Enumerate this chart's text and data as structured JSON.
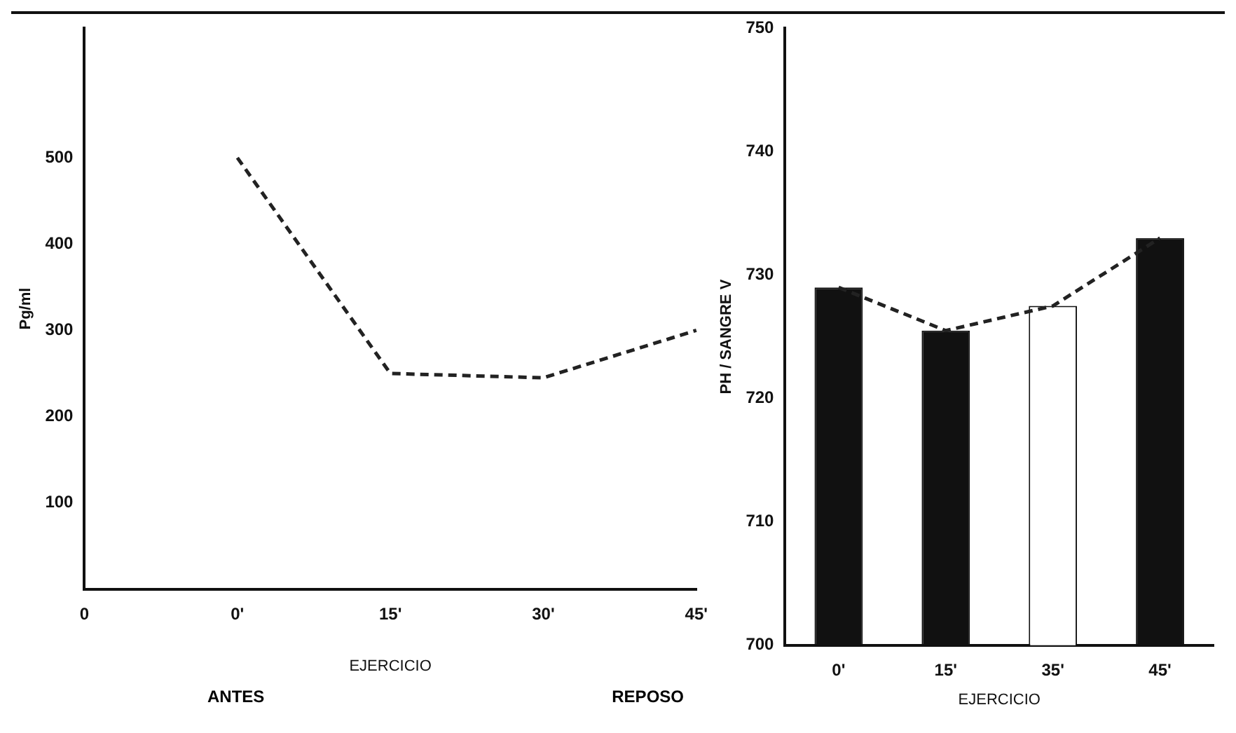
{
  "chart_data": [
    {
      "type": "line",
      "ylabel": "Pg/ml",
      "xlabel": "EJERCICIO",
      "categories": [
        "0",
        "0'",
        "15'",
        "30'",
        "45'"
      ],
      "series": [
        {
          "color": "#222222",
          "values": [
            null,
            500,
            250,
            245,
            300
          ],
          "line_style": "dashed",
          "marker": "none"
        }
      ],
      "ylim": [
        0,
        650
      ],
      "yticks": [
        100,
        200,
        300,
        400,
        500
      ],
      "grid": false,
      "legend": false,
      "annotations": [
        "ANTES",
        "REPOSO"
      ]
    },
    {
      "type": "bar",
      "ylabel": "PH / SANGRE V",
      "xlabel": "EJERCICIO",
      "categories": [
        "0'",
        "15'",
        "35'",
        "45'"
      ],
      "series": [
        {
          "type": "bar",
          "colors": [
            "#111111",
            "#111111",
            "#ffffff",
            "#111111"
          ],
          "values": [
            729,
            725.5,
            727.5,
            733
          ]
        },
        {
          "type": "line",
          "color": "#222222",
          "values": [
            729,
            725.5,
            727.5,
            733
          ],
          "line_style": "dashed",
          "marker": "none"
        }
      ],
      "ylim": [
        700,
        750
      ],
      "yticks": [
        700,
        710,
        720,
        730,
        740,
        750
      ],
      "grid": false,
      "legend": false
    }
  ]
}
